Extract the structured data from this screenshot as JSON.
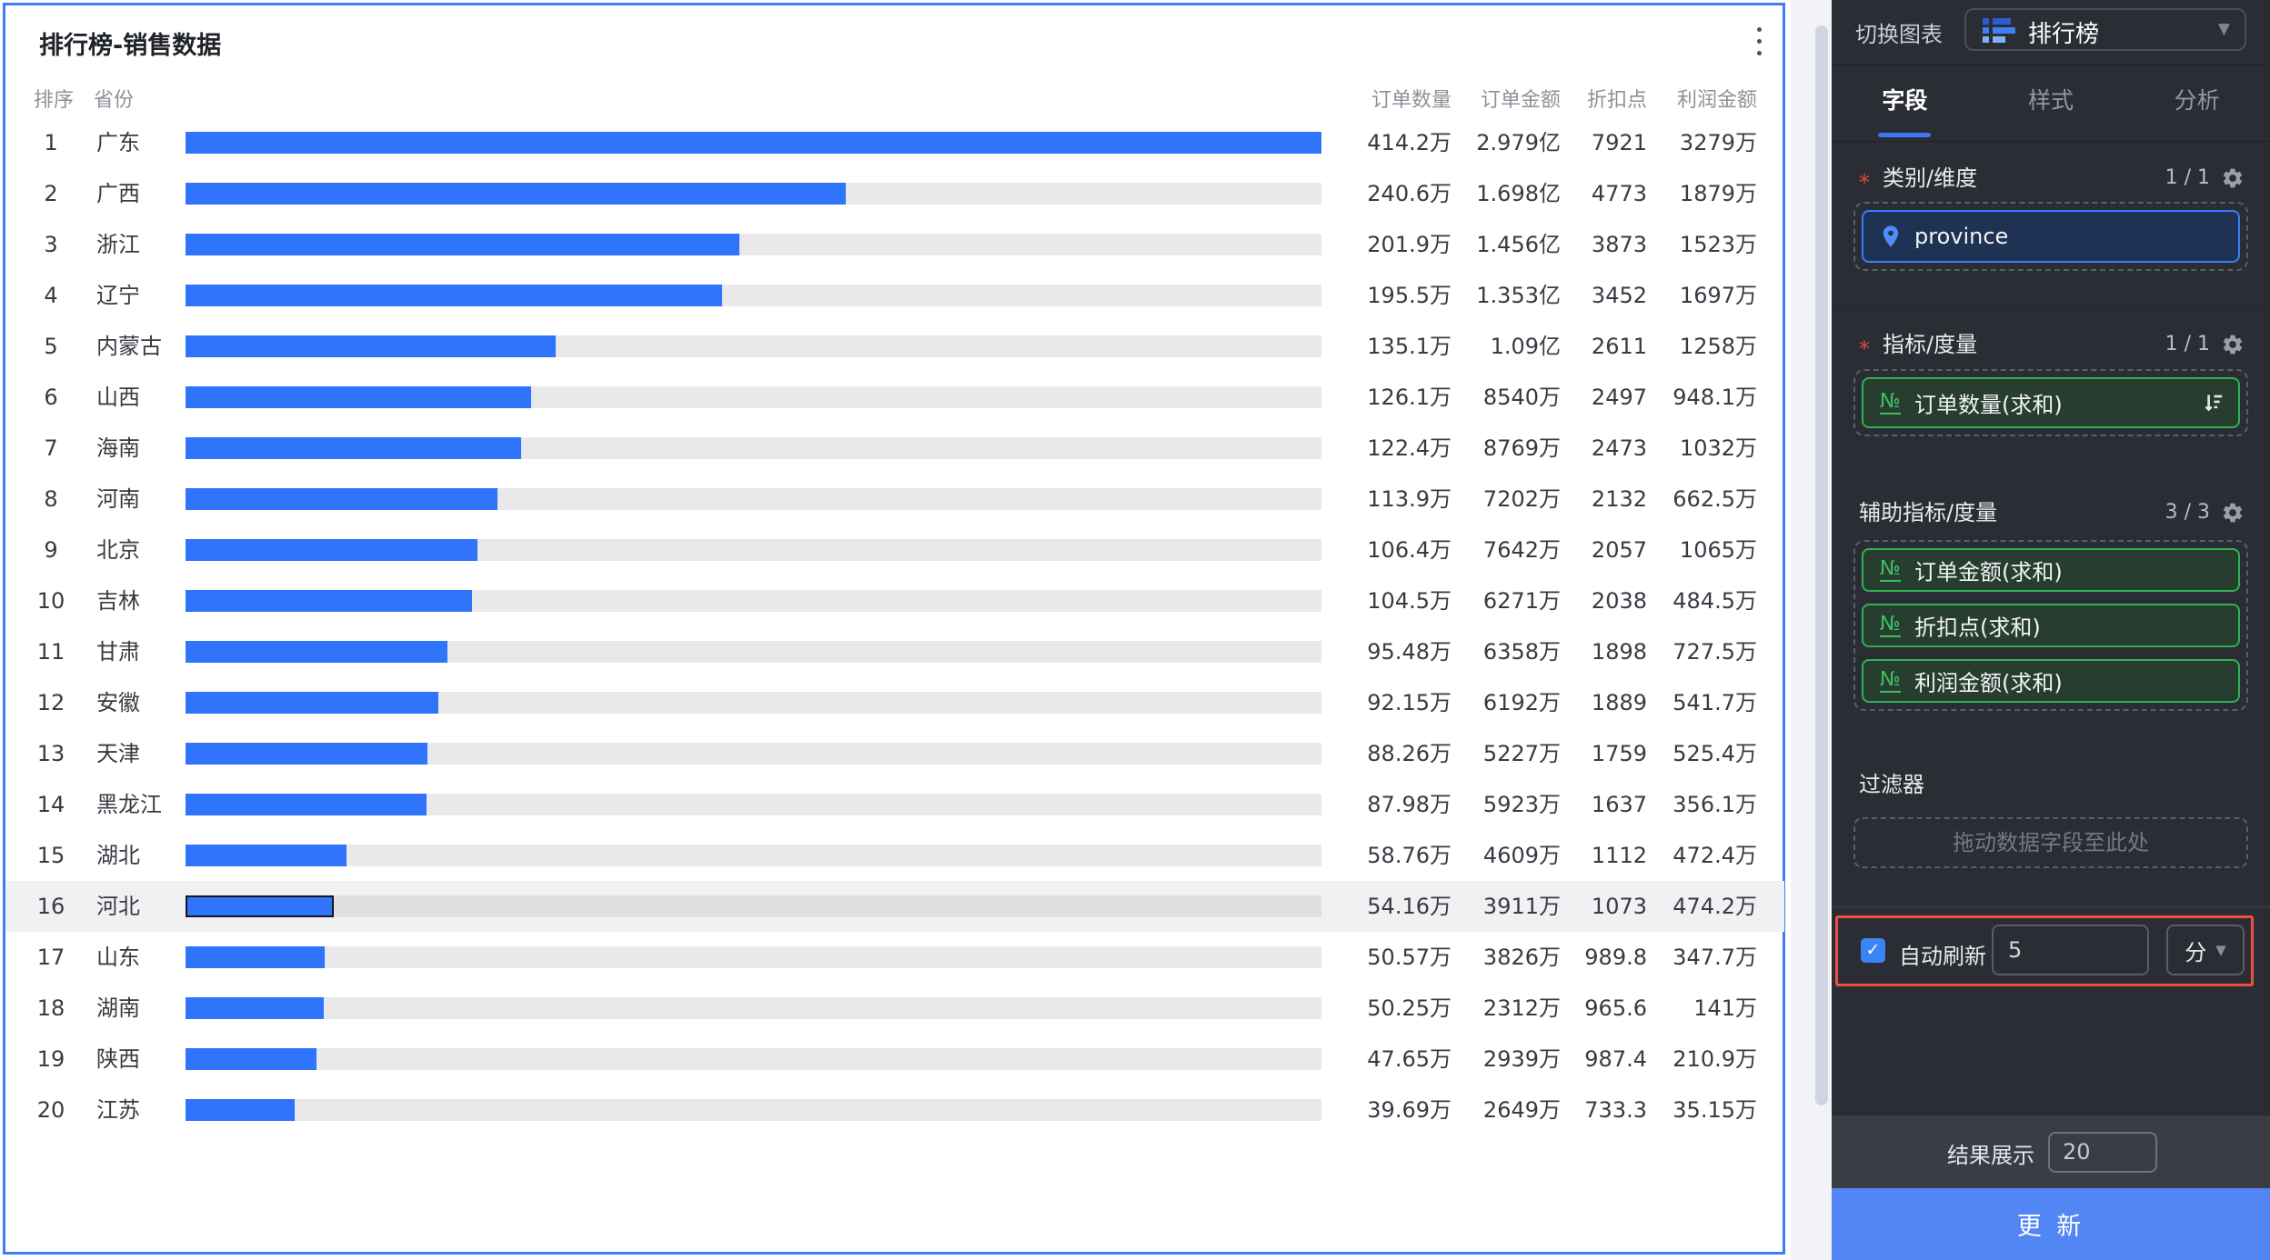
{
  "chart": {
    "title": "排行榜-销售数据",
    "headers": {
      "rank": "排序",
      "province": "省份",
      "orders": "订单数量",
      "amount": "订单金额",
      "discount": "折扣点",
      "profit": "利润金额"
    }
  },
  "chart_data": {
    "type": "bar",
    "title": "排行榜-销售数据",
    "columns": [
      "排序",
      "省份",
      "订单数量",
      "订单金额",
      "折扣点",
      "利润金额"
    ],
    "orientation": "horizontal",
    "max_orders_wan": 414.2,
    "highlighted_rank": 16,
    "rows": [
      {
        "rank": 1,
        "province": "广东",
        "orders": "414.2万",
        "orders_wan": 414.2,
        "amount": "2.979亿",
        "discount": "7921",
        "profit": "3279万"
      },
      {
        "rank": 2,
        "province": "广西",
        "orders": "240.6万",
        "orders_wan": 240.6,
        "amount": "1.698亿",
        "discount": "4773",
        "profit": "1879万"
      },
      {
        "rank": 3,
        "province": "浙江",
        "orders": "201.9万",
        "orders_wan": 201.9,
        "amount": "1.456亿",
        "discount": "3873",
        "profit": "1523万"
      },
      {
        "rank": 4,
        "province": "辽宁",
        "orders": "195.5万",
        "orders_wan": 195.5,
        "amount": "1.353亿",
        "discount": "3452",
        "profit": "1697万"
      },
      {
        "rank": 5,
        "province": "内蒙古",
        "orders": "135.1万",
        "orders_wan": 135.1,
        "amount": "1.09亿",
        "discount": "2611",
        "profit": "1258万"
      },
      {
        "rank": 6,
        "province": "山西",
        "orders": "126.1万",
        "orders_wan": 126.1,
        "amount": "8540万",
        "discount": "2497",
        "profit": "948.1万"
      },
      {
        "rank": 7,
        "province": "海南",
        "orders": "122.4万",
        "orders_wan": 122.4,
        "amount": "8769万",
        "discount": "2473",
        "profit": "1032万"
      },
      {
        "rank": 8,
        "province": "河南",
        "orders": "113.9万",
        "orders_wan": 113.9,
        "amount": "7202万",
        "discount": "2132",
        "profit": "662.5万"
      },
      {
        "rank": 9,
        "province": "北京",
        "orders": "106.4万",
        "orders_wan": 106.4,
        "amount": "7642万",
        "discount": "2057",
        "profit": "1065万"
      },
      {
        "rank": 10,
        "province": "吉林",
        "orders": "104.5万",
        "orders_wan": 104.5,
        "amount": "6271万",
        "discount": "2038",
        "profit": "484.5万"
      },
      {
        "rank": 11,
        "province": "甘肃",
        "orders": "95.48万",
        "orders_wan": 95.48,
        "amount": "6358万",
        "discount": "1898",
        "profit": "727.5万"
      },
      {
        "rank": 12,
        "province": "安徽",
        "orders": "92.15万",
        "orders_wan": 92.15,
        "amount": "6192万",
        "discount": "1889",
        "profit": "541.7万"
      },
      {
        "rank": 13,
        "province": "天津",
        "orders": "88.26万",
        "orders_wan": 88.26,
        "amount": "5227万",
        "discount": "1759",
        "profit": "525.4万"
      },
      {
        "rank": 14,
        "province": "黑龙江",
        "orders": "87.98万",
        "orders_wan": 87.98,
        "amount": "5923万",
        "discount": "1637",
        "profit": "356.1万"
      },
      {
        "rank": 15,
        "province": "湖北",
        "orders": "58.76万",
        "orders_wan": 58.76,
        "amount": "4609万",
        "discount": "1112",
        "profit": "472.4万"
      },
      {
        "rank": 16,
        "province": "河北",
        "orders": "54.16万",
        "orders_wan": 54.16,
        "amount": "3911万",
        "discount": "1073",
        "profit": "474.2万"
      },
      {
        "rank": 17,
        "province": "山东",
        "orders": "50.57万",
        "orders_wan": 50.57,
        "amount": "3826万",
        "discount": "989.8",
        "profit": "347.7万"
      },
      {
        "rank": 18,
        "province": "湖南",
        "orders": "50.25万",
        "orders_wan": 50.25,
        "amount": "2312万",
        "discount": "965.6",
        "profit": "141万"
      },
      {
        "rank": 19,
        "province": "陕西",
        "orders": "47.65万",
        "orders_wan": 47.65,
        "amount": "2939万",
        "discount": "987.4",
        "profit": "210.9万"
      },
      {
        "rank": 20,
        "province": "江苏",
        "orders": "39.69万",
        "orders_wan": 39.69,
        "amount": "2649万",
        "discount": "733.3",
        "profit": "35.15万"
      }
    ]
  },
  "panel": {
    "switch_chart_label": "切换图表",
    "chart_type_value": "排行榜",
    "tabs": [
      {
        "label": "字段",
        "active": true
      },
      {
        "label": "样式",
        "active": false
      },
      {
        "label": "分析",
        "active": false
      }
    ],
    "category_section": {
      "required": true,
      "label": "类别/维度",
      "count": "1 / 1",
      "chips": [
        {
          "label": "province",
          "type": "dimension"
        }
      ]
    },
    "measure_section": {
      "required": true,
      "label": "指标/度量",
      "count": "1 / 1",
      "chips": [
        {
          "label": "订单数量(求和)",
          "sorted": true
        }
      ]
    },
    "aux_section": {
      "required": false,
      "label": "辅助指标/度量",
      "count": "3 / 3",
      "chips": [
        {
          "label": "订单金额(求和)"
        },
        {
          "label": "折扣点(求和)"
        },
        {
          "label": "利润金额(求和)"
        }
      ]
    },
    "filter_section": {
      "label": "过滤器",
      "dropzone_placeholder": "拖动数据字段至此处"
    },
    "auto_refresh": {
      "checked": true,
      "checkmark": "✓",
      "label": "自动刷新",
      "interval_value": "5",
      "unit_value": "分"
    },
    "footer": {
      "result_label": "结果展示",
      "result_value": "20",
      "update_button": "更 新"
    }
  },
  "colors": {
    "bar": "#2f74fb",
    "bar_track": "#e9e9eb",
    "card_border": "#3e7ef5",
    "panel_bg": "#2b2d35",
    "chip_green": "#2fb254",
    "chip_blue": "#3b7cf7",
    "annotation_red": "#ee4f43",
    "update_button": "#5286f5"
  }
}
